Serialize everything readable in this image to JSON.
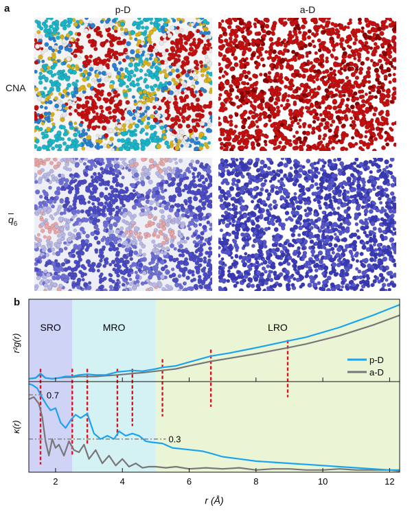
{
  "panel_a": {
    "label": "a",
    "columns": [
      "p-D",
      "a-D"
    ],
    "rows": [
      "CNA",
      "q̄6"
    ],
    "row2_symbol": "q",
    "row2_subscript": "6"
  },
  "panel_b": {
    "label": "b",
    "regions": [
      {
        "name": "SRO",
        "from": 1.2,
        "to": 2.5,
        "color": "#cfd3f5"
      },
      {
        "name": "MRO",
        "from": 2.5,
        "to": 5.0,
        "color": "#d4f1f4"
      },
      {
        "name": "LRO",
        "from": 5.0,
        "to": 12.3,
        "color": "#eaf5d6"
      }
    ],
    "annotations": [
      {
        "text": "0.7",
        "value": 0.7
      },
      {
        "text": "0.3",
        "value": 0.3
      }
    ],
    "legend": [
      "p-D",
      "a-D"
    ],
    "ylabel_top": "r²g(r)",
    "ylabel_bottom": "κ(r)",
    "xlabel": "r (Å)",
    "xticks": [
      "2",
      "4",
      "6",
      "8",
      "10",
      "12"
    ]
  },
  "chart_data": {
    "type": "line",
    "xlim": [
      1.2,
      12.3
    ],
    "peak_markers_x": [
      1.55,
      2.5,
      2.95,
      3.85,
      4.3,
      5.2,
      6.65,
      8.95
    ],
    "top": {
      "ylabel": "r²g(r)",
      "series": [
        {
          "name": "p-D",
          "color": "#1aa3f0",
          "x": [
            1.2,
            1.4,
            1.55,
            1.7,
            1.9,
            2.1,
            2.3,
            2.5,
            2.7,
            2.95,
            3.2,
            3.5,
            3.85,
            4.1,
            4.3,
            4.6,
            5.0,
            5.2,
            5.6,
            6.0,
            6.65,
            7.2,
            8.0,
            8.95,
            9.5,
            10.5,
            11.5,
            12.3
          ],
          "y": [
            0.02,
            0.03,
            0.09,
            0.03,
            0.02,
            0.03,
            0.05,
            0.05,
            0.07,
            0.08,
            0.07,
            0.07,
            0.11,
            0.12,
            0.13,
            0.12,
            0.15,
            0.17,
            0.19,
            0.24,
            0.32,
            0.36,
            0.43,
            0.52,
            0.57,
            0.7,
            0.86,
            1.0
          ]
        },
        {
          "name": "a-D",
          "color": "#777777",
          "x": [
            1.2,
            1.4,
            1.55,
            1.7,
            1.9,
            2.1,
            2.3,
            2.5,
            2.7,
            2.95,
            3.2,
            3.5,
            3.85,
            4.1,
            4.3,
            4.6,
            5.0,
            5.2,
            5.6,
            6.0,
            6.65,
            7.2,
            8.0,
            8.95,
            9.5,
            10.5,
            11.5,
            12.3
          ],
          "y": [
            0.02,
            0.03,
            0.08,
            0.03,
            0.02,
            0.03,
            0.04,
            0.04,
            0.05,
            0.05,
            0.05,
            0.06,
            0.07,
            0.08,
            0.09,
            0.1,
            0.12,
            0.13,
            0.15,
            0.19,
            0.25,
            0.29,
            0.35,
            0.43,
            0.48,
            0.59,
            0.73,
            0.86
          ]
        }
      ]
    },
    "bottom": {
      "ylabel": "κ(r)",
      "ylim": [
        0,
        0.82
      ],
      "series": [
        {
          "name": "p-D",
          "color": "#1aa3f0",
          "x": [
            1.2,
            1.3,
            1.45,
            1.55,
            1.65,
            1.75,
            1.85,
            2.0,
            2.15,
            2.3,
            2.45,
            2.6,
            2.75,
            2.95,
            3.15,
            3.35,
            3.55,
            3.75,
            3.9,
            4.1,
            4.3,
            4.5,
            4.7,
            4.9,
            5.2,
            5.5,
            5.8,
            6.1,
            6.4,
            6.65,
            7.0,
            7.5,
            8.0,
            8.5,
            9.0,
            9.5,
            10.0,
            10.5,
            11.0,
            11.5,
            12.0,
            12.3
          ],
          "y": [
            0.8,
            0.79,
            0.76,
            0.7,
            0.65,
            0.6,
            0.56,
            0.58,
            0.45,
            0.4,
            0.47,
            0.52,
            0.49,
            0.53,
            0.35,
            0.3,
            0.33,
            0.3,
            0.37,
            0.33,
            0.35,
            0.33,
            0.28,
            0.27,
            0.26,
            0.22,
            0.21,
            0.2,
            0.19,
            0.17,
            0.14,
            0.12,
            0.1,
            0.09,
            0.08,
            0.07,
            0.06,
            0.05,
            0.04,
            0.03,
            0.02,
            0.02
          ]
        },
        {
          "name": "a-D",
          "color": "#777777",
          "x": [
            1.2,
            1.35,
            1.5,
            1.6,
            1.7,
            1.8,
            1.9,
            2.0,
            2.1,
            2.25,
            2.4,
            2.55,
            2.7,
            2.85,
            3.0,
            3.2,
            3.4,
            3.6,
            3.8,
            4.0,
            4.2,
            4.4,
            4.6,
            4.8,
            5.0,
            5.3,
            5.6,
            6.0,
            6.5,
            7.0,
            7.5,
            8.0,
            8.5,
            9.0,
            9.5,
            10.0,
            10.5,
            11.0,
            11.5,
            12.0,
            12.3
          ],
          "y": [
            0.66,
            0.68,
            0.62,
            0.5,
            0.28,
            0.15,
            0.3,
            0.22,
            0.25,
            0.15,
            0.28,
            0.2,
            0.18,
            0.25,
            0.12,
            0.2,
            0.08,
            0.15,
            0.06,
            0.12,
            0.05,
            0.08,
            0.04,
            0.05,
            0.05,
            0.04,
            0.05,
            0.03,
            0.04,
            0.03,
            0.04,
            0.02,
            0.03,
            0.03,
            0.02,
            0.02,
            0.03,
            0.02,
            0.02,
            0.02,
            0.01
          ]
        }
      ]
    }
  }
}
